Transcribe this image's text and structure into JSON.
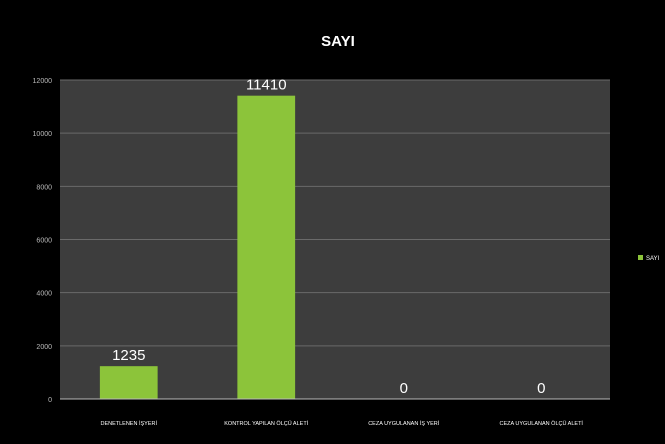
{
  "chart_data": {
    "type": "bar",
    "title": "SAYI",
    "categories": [
      "DENETLENEN İŞYERİ",
      "KONTROL YAPILAN ÖLÇÜ ALETİ",
      "CEZA UYGULANAN İŞ YERİ",
      "CEZA UYGULANAN ÖLÇÜ ALETİ"
    ],
    "series": [
      {
        "name": "SAYI",
        "values": [
          1235,
          11410,
          0,
          0
        ]
      }
    ],
    "data_labels": [
      "1235",
      "11410",
      "0",
      "0"
    ],
    "yticks": [
      "0",
      "2000",
      "4000",
      "6000",
      "8000",
      "10000",
      "12000"
    ],
    "ylim": [
      0,
      12000
    ],
    "xlabel": "",
    "ylabel": "",
    "grid": true,
    "legend": {
      "position": "right",
      "label": "SAYI"
    },
    "colors": {
      "background": "#000000",
      "plot_area": "#3d3d3d",
      "gridline": "#6a6a6a",
      "bar": "#8cc43a",
      "text": "#ffffff",
      "axis": "#bbbbbb"
    }
  }
}
